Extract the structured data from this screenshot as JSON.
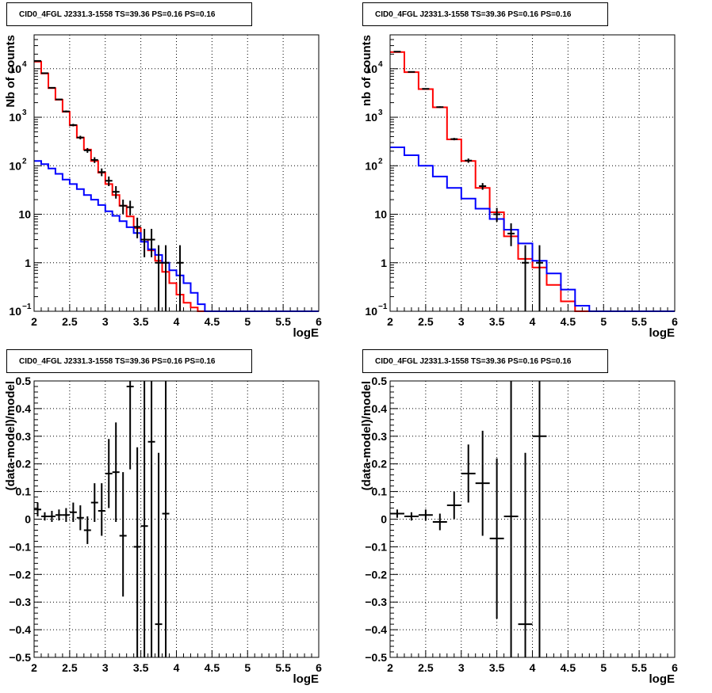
{
  "chart_data": [
    {
      "type": "line",
      "title": "CID0_4FGL J2331.3-1558 TS=39.36 PS=0.16 PS=0.16",
      "xlabel": "logE",
      "ylabel": "Nb of counts",
      "xlim": [
        2,
        6
      ],
      "ylim": [
        0.1,
        50000
      ],
      "yscale": "log",
      "xticks": [
        "2",
        "2.5",
        "3",
        "3.5",
        "4",
        "4.5",
        "5",
        "5.5",
        "6"
      ],
      "yticks": [
        {
          "value": 0.1,
          "base": "10",
          "exp": "−1"
        },
        {
          "value": 1,
          "label": "1"
        },
        {
          "value": 10,
          "label": "10"
        },
        {
          "value": 100,
          "base": "10",
          "exp": "2"
        },
        {
          "value": 1000,
          "base": "10",
          "exp": "3"
        },
        {
          "value": 10000,
          "base": "10",
          "exp": "4"
        }
      ],
      "grid": true,
      "bin_edges": [
        2.0,
        2.1,
        2.2,
        2.3,
        2.4,
        2.5,
        2.6,
        2.7,
        2.8,
        2.9,
        3.0,
        3.1,
        3.2,
        3.3,
        3.4,
        3.5,
        3.6,
        3.7,
        3.8,
        3.9,
        4.0,
        4.1,
        4.2,
        4.3,
        4.4,
        4.5,
        4.6,
        4.7,
        4.8,
        4.9,
        5.0,
        5.1,
        5.2,
        5.3,
        5.4,
        5.5,
        5.6,
        5.7,
        5.8,
        5.9,
        6.0
      ],
      "series": [
        {
          "color": "#ff0000",
          "kind": "step",
          "values": [
            14000,
            8000,
            4000,
            2300,
            1300,
            680,
            380,
            215,
            125,
            72,
            42,
            25,
            15,
            9,
            5.2,
            3.0,
            1.8,
            1.1,
            0.65,
            0.38,
            0.22,
            0.15,
            0.12,
            0.1,
            0.1,
            0.1,
            0.1,
            0.1,
            0.1,
            0.1,
            0.1,
            0.1,
            0.1,
            0.1,
            0.1,
            0.1,
            0.1,
            0.1,
            0.1,
            0.1
          ]
        },
        {
          "color": "#0000ff",
          "kind": "step",
          "values": [
            125,
            108,
            88,
            68,
            52,
            42,
            33,
            25,
            20,
            15.5,
            11.5,
            9.3,
            7.2,
            5.4,
            4.1,
            2.7,
            1.9,
            1.45,
            1.0,
            0.7,
            0.55,
            0.38,
            0.24,
            0.14,
            0.1,
            0.1,
            0.1,
            0.1,
            0.1,
            0.1,
            0.1,
            0.1,
            0.1,
            0.1,
            0.1,
            0.1,
            0.1,
            0.1,
            0.1,
            0.1
          ]
        },
        {
          "color": "#000000",
          "kind": "errorbars",
          "name": "data",
          "points": [
            {
              "x": 2.05,
              "y": 14500,
              "lo": 14300,
              "hi": 14700
            },
            {
              "x": 2.15,
              "y": 8100,
              "lo": 7950,
              "hi": 8250
            },
            {
              "x": 2.25,
              "y": 4050,
              "lo": 3940,
              "hi": 4160
            },
            {
              "x": 2.35,
              "y": 2330,
              "lo": 2250,
              "hi": 2410
            },
            {
              "x": 2.45,
              "y": 1320,
              "lo": 1260,
              "hi": 1380
            },
            {
              "x": 2.55,
              "y": 690,
              "lo": 650,
              "hi": 730
            },
            {
              "x": 2.65,
              "y": 382,
              "lo": 350,
              "hi": 415
            },
            {
              "x": 2.75,
              "y": 208,
              "lo": 185,
              "hi": 232
            },
            {
              "x": 2.85,
              "y": 132,
              "lo": 114,
              "hi": 150
            },
            {
              "x": 2.95,
              "y": 74,
              "lo": 61,
              "hi": 88
            },
            {
              "x": 3.05,
              "y": 49,
              "lo": 38,
              "hi": 60
            },
            {
              "x": 3.15,
              "y": 29,
              "lo": 21,
              "hi": 38
            },
            {
              "x": 3.25,
              "y": 15,
              "lo": 10,
              "hi": 20
            },
            {
              "x": 3.35,
              "y": 14,
              "lo": 9.5,
              "hi": 19
            },
            {
              "x": 3.45,
              "y": 5.5,
              "lo": 3.2,
              "hi": 8.5
            },
            {
              "x": 3.55,
              "y": 3.0,
              "lo": 1.3,
              "hi": 5.0
            },
            {
              "x": 3.65,
              "y": 3.0,
              "lo": 1.3,
              "hi": 5.0
            },
            {
              "x": 3.75,
              "y": 1.0,
              "lo": 0.1,
              "hi": 2.3
            },
            {
              "x": 3.85,
              "y": 1.0,
              "lo": 0.1,
              "hi": 2.3
            },
            {
              "x": 4.05,
              "y": 1.0,
              "lo": 0.1,
              "hi": 2.3
            }
          ]
        }
      ]
    },
    {
      "type": "line",
      "title": "CID0_4FGL J2331.3-1558 TS=39.36 PS=0.16 PS=0.16",
      "xlabel": "logE",
      "ylabel": "nb of counts",
      "xlim": [
        2,
        6
      ],
      "ylim": [
        0.1,
        50000
      ],
      "yscale": "log",
      "xticks": [
        "2",
        "2.5",
        "3",
        "3.5",
        "4",
        "4.5",
        "5",
        "5.5",
        "6"
      ],
      "yticks": [
        {
          "value": 0.1,
          "base": "10",
          "exp": "−1"
        },
        {
          "value": 1,
          "label": "1"
        },
        {
          "value": 10,
          "label": "10"
        },
        {
          "value": 100,
          "base": "10",
          "exp": "2"
        },
        {
          "value": 1000,
          "base": "10",
          "exp": "3"
        },
        {
          "value": 10000,
          "base": "10",
          "exp": "4"
        }
      ],
      "grid": true,
      "bin_edges": [
        2.0,
        2.2,
        2.4,
        2.6,
        2.8,
        3.0,
        3.2,
        3.4,
        3.6,
        3.8,
        4.0,
        4.2,
        4.4,
        4.6,
        4.8,
        5.0,
        5.2,
        5.4,
        5.6,
        5.8,
        6.0
      ],
      "series": [
        {
          "color": "#ff0000",
          "kind": "step",
          "values": [
            22000,
            8500,
            3800,
            1600,
            350,
            125,
            35,
            11,
            3.5,
            1.2,
            0.8,
            0.35,
            0.16,
            0.1,
            0.1,
            0.1,
            0.1,
            0.1,
            0.1,
            0.1
          ]
        },
        {
          "color": "#0000ff",
          "kind": "step",
          "values": [
            240,
            165,
            100,
            60,
            35,
            21,
            13,
            8,
            4.8,
            2.5,
            1.1,
            0.6,
            0.28,
            0.13,
            0.1,
            0.1,
            0.1,
            0.1,
            0.1,
            0.1
          ]
        },
        {
          "color": "#000000",
          "kind": "errorbars",
          "name": "data",
          "points": [
            {
              "x": 2.1,
              "y": 22500,
              "lo": 22300,
              "hi": 22700
            },
            {
              "x": 2.3,
              "y": 8600,
              "lo": 8450,
              "hi": 8750
            },
            {
              "x": 2.5,
              "y": 3850,
              "lo": 3750,
              "hi": 3950
            },
            {
              "x": 2.7,
              "y": 1620,
              "lo": 1560,
              "hi": 1680
            },
            {
              "x": 2.9,
              "y": 355,
              "lo": 335,
              "hi": 375
            },
            {
              "x": 3.1,
              "y": 128,
              "lo": 115,
              "hi": 141
            },
            {
              "x": 3.3,
              "y": 38,
              "lo": 32,
              "hi": 44
            },
            {
              "x": 3.5,
              "y": 10,
              "lo": 7,
              "hi": 13.5
            },
            {
              "x": 3.7,
              "y": 4,
              "lo": 2.2,
              "hi": 6.5
            },
            {
              "x": 3.9,
              "y": 1.0,
              "lo": 0.1,
              "hi": 2.3
            },
            {
              "x": 4.1,
              "y": 1.0,
              "lo": 0.1,
              "hi": 2.3
            }
          ]
        }
      ]
    },
    {
      "type": "scatter",
      "title": "CID0_4FGL J2331.3-1558 TS=39.36 PS=0.16 PS=0.16",
      "xlabel": "logE",
      "ylabel": "(data-model)/model",
      "xlim": [
        2,
        6
      ],
      "ylim": [
        -0.5,
        0.5
      ],
      "xticks": [
        "2",
        "2.5",
        "3",
        "3.5",
        "4",
        "4.5",
        "5",
        "5.5",
        "6"
      ],
      "yticks": [
        "−0.5",
        "−0.4",
        "−0.3",
        "−0.2",
        "−0.1",
        "0",
        "0.1",
        "0.2",
        "0.3",
        "0.4",
        "0.5"
      ],
      "grid": true,
      "series": [
        {
          "color": "#000000",
          "kind": "errorbars",
          "name": "residuals",
          "halfwidth": 0.05,
          "points": [
            {
              "x": 2.05,
              "y": 0.035,
              "lo": 0.01,
              "hi": 0.06
            },
            {
              "x": 2.15,
              "y": 0.01,
              "lo": -0.005,
              "hi": 0.025
            },
            {
              "x": 2.25,
              "y": 0.01,
              "lo": -0.01,
              "hi": 0.03
            },
            {
              "x": 2.35,
              "y": 0.015,
              "lo": -0.005,
              "hi": 0.035
            },
            {
              "x": 2.45,
              "y": 0.015,
              "lo": -0.01,
              "hi": 0.04
            },
            {
              "x": 2.55,
              "y": 0.025,
              "lo": -0.01,
              "hi": 0.06
            },
            {
              "x": 2.65,
              "y": 0.005,
              "lo": -0.04,
              "hi": 0.05
            },
            {
              "x": 2.75,
              "y": -0.04,
              "lo": -0.09,
              "hi": 0.01
            },
            {
              "x": 2.85,
              "y": 0.06,
              "lo": -0.01,
              "hi": 0.13
            },
            {
              "x": 2.95,
              "y": 0.03,
              "lo": -0.06,
              "hi": 0.13
            },
            {
              "x": 3.05,
              "y": 0.165,
              "lo": 0.04,
              "hi": 0.29
            },
            {
              "x": 3.15,
              "y": 0.17,
              "lo": -0.01,
              "hi": 0.35
            },
            {
              "x": 3.25,
              "y": -0.06,
              "lo": -0.28,
              "hi": 0.17
            },
            {
              "x": 3.35,
              "y": 0.48,
              "lo": 0.18,
              "hi": 0.5
            },
            {
              "x": 3.45,
              "y": -0.1,
              "lo": -0.5,
              "hi": 0.26
            },
            {
              "x": 3.55,
              "y": -0.025,
              "lo": -0.5,
              "hi": 0.5
            },
            {
              "x": 3.65,
              "y": 0.28,
              "lo": -0.5,
              "hi": 0.5
            },
            {
              "x": 3.75,
              "y": -0.38,
              "lo": -0.5,
              "hi": 0.24
            },
            {
              "x": 3.85,
              "y": 0.02,
              "lo": -0.5,
              "hi": 0.5
            }
          ]
        }
      ]
    },
    {
      "type": "scatter",
      "title": "CID0_4FGL J2331.3-1558 TS=39.36 PS=0.16 PS=0.16",
      "xlabel": "logE",
      "ylabel": "(data-model)/model",
      "xlim": [
        2,
        6
      ],
      "ylim": [
        -0.5,
        0.5
      ],
      "xticks": [
        "2",
        "2.5",
        "3",
        "3.5",
        "4",
        "4.5",
        "5",
        "5.5",
        "6"
      ],
      "yticks": [
        "−0.5",
        "−0.4",
        "−0.3",
        "−0.2",
        "−0.1",
        "0",
        "0.1",
        "0.2",
        "0.3",
        "0.4",
        "0.5"
      ],
      "grid": true,
      "series": [
        {
          "color": "#000000",
          "kind": "errorbars",
          "name": "residuals",
          "halfwidth": 0.1,
          "points": [
            {
              "x": 2.1,
              "y": 0.02,
              "lo": 0.005,
              "hi": 0.035
            },
            {
              "x": 2.3,
              "y": 0.01,
              "lo": -0.005,
              "hi": 0.025
            },
            {
              "x": 2.5,
              "y": 0.015,
              "lo": -0.005,
              "hi": 0.035
            },
            {
              "x": 2.7,
              "y": -0.01,
              "lo": -0.04,
              "hi": 0.02
            },
            {
              "x": 2.9,
              "y": 0.05,
              "lo": 0.0,
              "hi": 0.1
            },
            {
              "x": 3.1,
              "y": 0.165,
              "lo": 0.06,
              "hi": 0.27
            },
            {
              "x": 3.3,
              "y": 0.13,
              "lo": -0.06,
              "hi": 0.32
            },
            {
              "x": 3.5,
              "y": -0.07,
              "lo": -0.36,
              "hi": 0.22
            },
            {
              "x": 3.7,
              "y": 0.01,
              "lo": -0.5,
              "hi": 0.5
            },
            {
              "x": 3.9,
              "y": -0.38,
              "lo": -0.5,
              "hi": 0.24
            },
            {
              "x": 4.1,
              "y": 0.3,
              "lo": -0.5,
              "hi": 0.5
            }
          ]
        }
      ]
    }
  ]
}
